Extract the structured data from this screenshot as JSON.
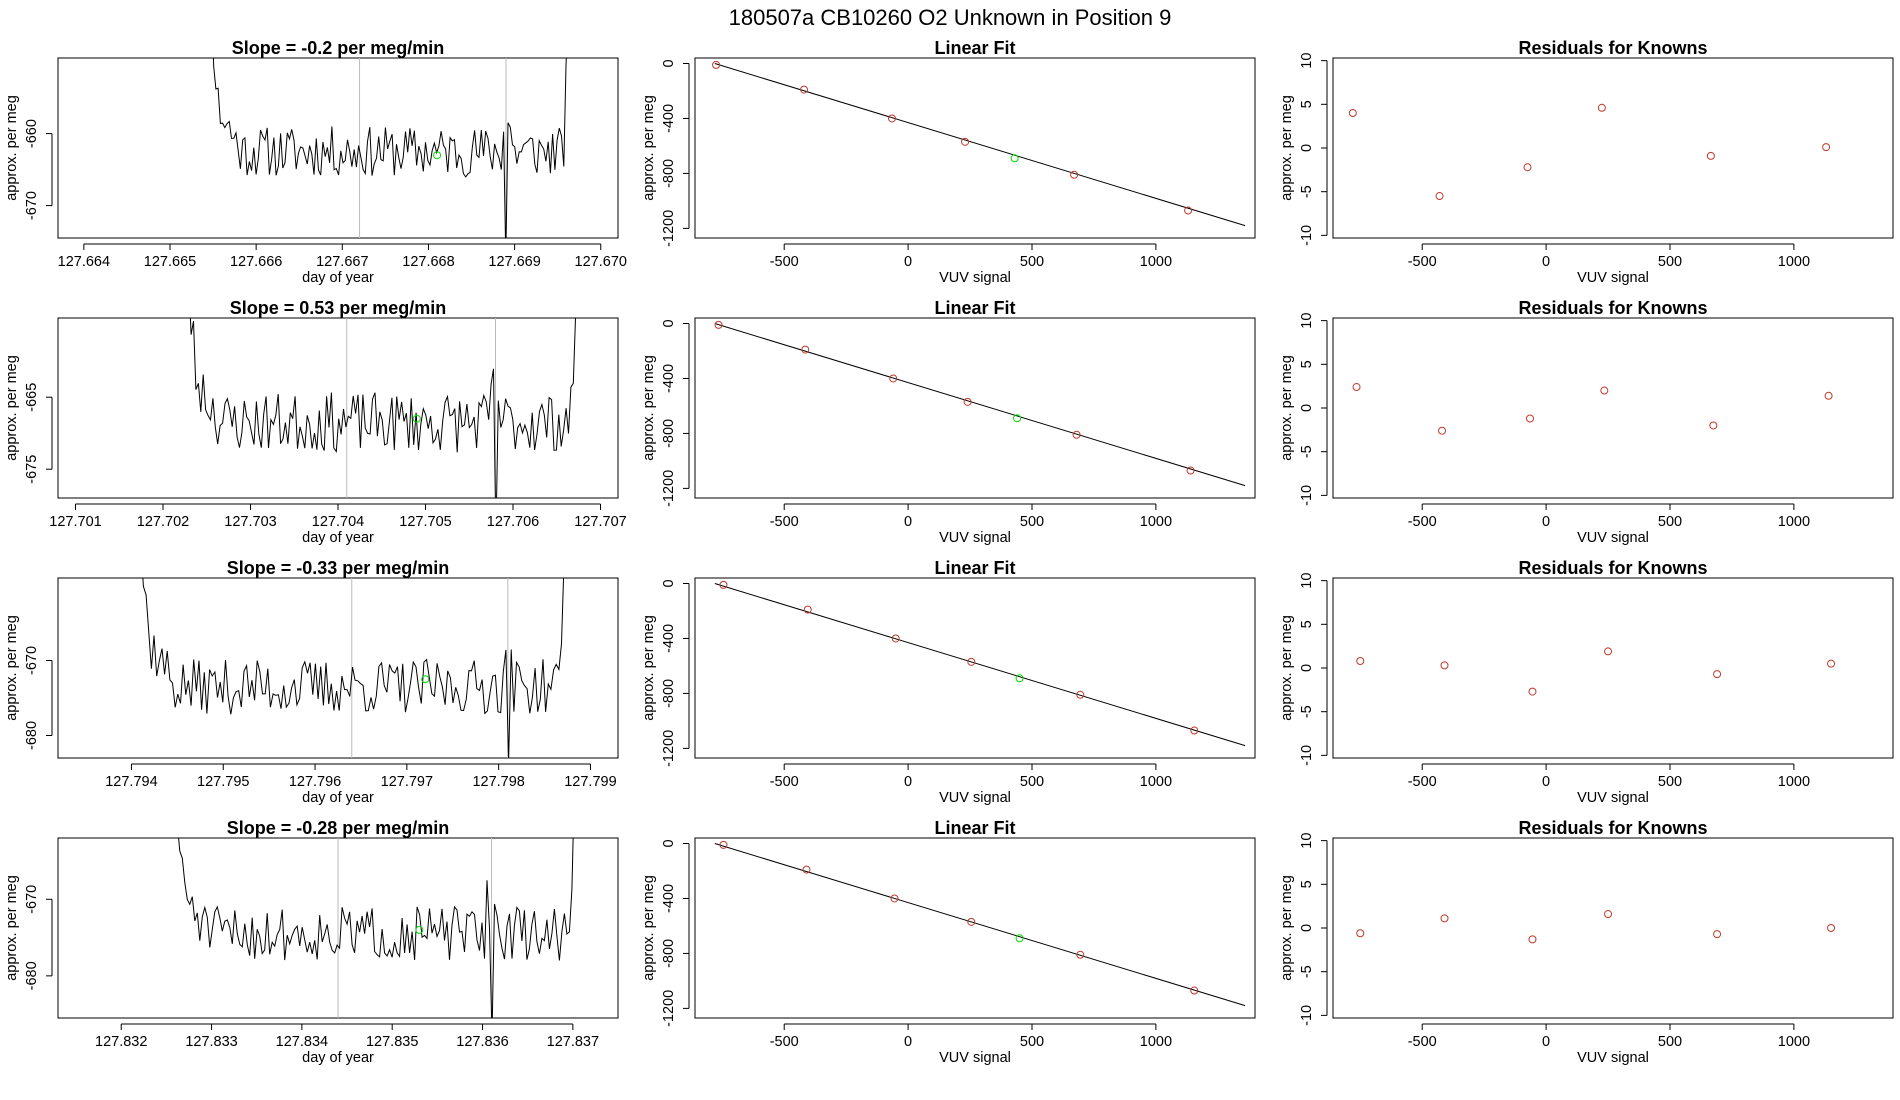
{
  "figure": {
    "title": "180507a      CB10260    O2 Unknown in Position  9",
    "colors": {
      "trace": "#000000",
      "known": "#c0392b",
      "unknown": "#00dd00",
      "vline": "#bbbbbb",
      "frame": "#000000"
    }
  },
  "chart_data": [
    {
      "type": "line",
      "row": 1,
      "col": 1,
      "title": "Slope =  -0.2  per meg/min",
      "xlabel": "day of year",
      "ylabel": "approx. per meg",
      "xlim": [
        127.6637,
        127.6702
      ],
      "ylim": [
        -674.5,
        -649.5
      ],
      "xticks": [
        "127.664",
        "127.665",
        "127.666",
        "127.667",
        "127.668",
        "127.669",
        "127.670"
      ],
      "yticks": [
        "-660",
        "-670"
      ],
      "vlines": [
        127.6672,
        127.6689
      ],
      "trace_start": 127.6653,
      "trace_end": 127.6697,
      "trace_base": -662.5,
      "trace_amp": 2.2,
      "seed": 11,
      "dip_at": 127.6689,
      "dip_depth": 15,
      "unknown_point": {
        "x": 127.6681,
        "y": -663.0
      }
    },
    {
      "type": "line",
      "row": 2,
      "col": 1,
      "title": "Slope =  0.53  per meg/min",
      "xlabel": "day of year",
      "ylabel": "approx. per meg",
      "xlim": [
        127.7008,
        127.7072
      ],
      "ylim": [
        -679,
        -654
      ],
      "xticks": [
        "127.701",
        "127.702",
        "127.703",
        "127.704",
        "127.705",
        "127.706",
        "127.707"
      ],
      "yticks": [
        "-665",
        "-675"
      ],
      "vlines": [
        127.7041,
        127.7058
      ],
      "trace_start": 127.7021,
      "trace_end": 127.7068,
      "trace_base": -668.5,
      "trace_amp": 2.6,
      "seed": 23,
      "dip_at": 127.7058,
      "dip_depth": 16,
      "unknown_point": {
        "x": 127.7049,
        "y": -668.0
      }
    },
    {
      "type": "line",
      "row": 3,
      "col": 1,
      "title": "Slope =  -0.33  per meg/min",
      "xlabel": "day of year",
      "ylabel": "approx. per meg",
      "xlim": [
        127.7932,
        127.7993
      ],
      "ylim": [
        -683,
        -659
      ],
      "xticks": [
        "127.794",
        "127.795",
        "127.796",
        "127.797",
        "127.798",
        "127.799"
      ],
      "yticks": [
        "-670",
        "-680"
      ],
      "vlines": [
        127.7964,
        127.7981
      ],
      "trace_start": 127.7939,
      "trace_end": 127.7988,
      "trace_base": -673.5,
      "trace_amp": 2.3,
      "seed": 37,
      "dip_at": 127.7981,
      "dip_depth": 13,
      "unknown_point": {
        "x": 127.7972,
        "y": -672.5
      }
    },
    {
      "type": "line",
      "row": 4,
      "col": 1,
      "title": "Slope =  -0.28  per meg/min",
      "xlabel": "day of year",
      "ylabel": "approx. per meg",
      "xlim": [
        127.8313,
        127.8375
      ],
      "ylim": [
        -685.5,
        -662
      ],
      "xticks": [
        "127.832",
        "127.833",
        "127.834",
        "127.835",
        "127.836",
        "127.837"
      ],
      "yticks": [
        "-670",
        "-680"
      ],
      "vlines": [
        127.8344,
        127.8361
      ],
      "trace_start": 127.8324,
      "trace_end": 127.8371,
      "trace_base": -674.5,
      "trace_amp": 2.2,
      "seed": 51,
      "dip_at": 127.8361,
      "dip_depth": 13,
      "unknown_point": {
        "x": 127.8353,
        "y": -674.0
      }
    },
    {
      "type": "scatter",
      "row": 1,
      "col": 2,
      "title": "Linear Fit",
      "xlabel": "VUV signal",
      "ylabel": "approx. per meg",
      "xlim": [
        -860,
        1400
      ],
      "ylim": [
        -1270,
        40
      ],
      "xticks": [
        -500,
        0,
        500,
        1000
      ],
      "yticks": [
        0,
        -400,
        -800,
        -1200
      ],
      "fit_line": {
        "x": [
          -780,
          1360
        ],
        "y": [
          0,
          -1180
        ]
      },
      "knowns": {
        "x": [
          -775,
          -420,
          -65,
          230,
          670,
          1130
        ],
        "y": [
          -10,
          -190,
          -400,
          -570,
          -810,
          -1070
        ]
      },
      "unknown": {
        "x": 430,
        "y": -690
      }
    },
    {
      "type": "scatter",
      "row": 2,
      "col": 2,
      "title": "Linear Fit",
      "xlabel": "VUV signal",
      "ylabel": "approx. per meg",
      "xlim": [
        -860,
        1400
      ],
      "ylim": [
        -1270,
        40
      ],
      "xticks": [
        -500,
        0,
        500,
        1000
      ],
      "yticks": [
        0,
        -400,
        -800,
        -1200
      ],
      "fit_line": {
        "x": [
          -780,
          1360
        ],
        "y": [
          0,
          -1180
        ]
      },
      "knowns": {
        "x": [
          -765,
          -415,
          -60,
          240,
          680,
          1140
        ],
        "y": [
          -10,
          -190,
          -400,
          -570,
          -810,
          -1070
        ]
      },
      "unknown": {
        "x": 440,
        "y": -690
      }
    },
    {
      "type": "scatter",
      "row": 3,
      "col": 2,
      "title": "Linear Fit",
      "xlabel": "VUV signal",
      "ylabel": "approx. per meg",
      "xlim": [
        -860,
        1400
      ],
      "ylim": [
        -1270,
        40
      ],
      "xticks": [
        -500,
        0,
        500,
        1000
      ],
      "yticks": [
        0,
        -400,
        -800,
        -1200
      ],
      "fit_line": {
        "x": [
          -780,
          1360
        ],
        "y": [
          0,
          -1180
        ]
      },
      "knowns": {
        "x": [
          -745,
          -405,
          -50,
          255,
          695,
          1155
        ],
        "y": [
          -10,
          -190,
          -400,
          -570,
          -810,
          -1070
        ]
      },
      "unknown": {
        "x": 450,
        "y": -690
      }
    },
    {
      "type": "scatter",
      "row": 4,
      "col": 2,
      "title": "Linear Fit",
      "xlabel": "VUV signal",
      "ylabel": "approx. per meg",
      "xlim": [
        -860,
        1400
      ],
      "ylim": [
        -1270,
        40
      ],
      "xticks": [
        -500,
        0,
        500,
        1000
      ],
      "yticks": [
        0,
        -400,
        -800,
        -1200
      ],
      "fit_line": {
        "x": [
          -780,
          1360
        ],
        "y": [
          0,
          -1180
        ]
      },
      "knowns": {
        "x": [
          -745,
          -410,
          -55,
          255,
          695,
          1155
        ],
        "y": [
          -10,
          -190,
          -400,
          -570,
          -810,
          -1070
        ]
      },
      "unknown": {
        "x": 450,
        "y": -690
      }
    },
    {
      "type": "scatter",
      "row": 1,
      "col": 3,
      "title": "Residuals for Knowns",
      "xlabel": "VUV signal",
      "ylabel": "approx. per meg",
      "xlim": [
        -860,
        1400
      ],
      "ylim": [
        -10.3,
        10.3
      ],
      "xticks": [
        -500,
        0,
        500,
        1000
      ],
      "yticks": [
        10,
        5,
        0,
        -5,
        -10
      ],
      "knowns": {
        "x": [
          -780,
          -430,
          -75,
          225,
          665,
          1130
        ],
        "y": [
          4.0,
          -5.5,
          -2.2,
          4.6,
          -0.9,
          0.1
        ]
      }
    },
    {
      "type": "scatter",
      "row": 2,
      "col": 3,
      "title": "Residuals for Knowns",
      "xlabel": "VUV signal",
      "ylabel": "approx. per meg",
      "xlim": [
        -860,
        1400
      ],
      "ylim": [
        -10.3,
        10.3
      ],
      "xticks": [
        -500,
        0,
        500,
        1000
      ],
      "yticks": [
        10,
        5,
        0,
        -5,
        -10
      ],
      "knowns": {
        "x": [
          -765,
          -420,
          -65,
          235,
          675,
          1140
        ],
        "y": [
          2.4,
          -2.6,
          -1.2,
          2.0,
          -2.0,
          1.4
        ]
      }
    },
    {
      "type": "scatter",
      "row": 3,
      "col": 3,
      "title": "Residuals for Knowns",
      "xlabel": "VUV signal",
      "ylabel": "approx. per meg",
      "xlim": [
        -860,
        1400
      ],
      "ylim": [
        -10.3,
        10.3
      ],
      "xticks": [
        -500,
        0,
        500,
        1000
      ],
      "yticks": [
        10,
        5,
        0,
        -5,
        -10
      ],
      "knowns": {
        "x": [
          -750,
          -410,
          -55,
          250,
          690,
          1150
        ],
        "y": [
          0.8,
          0.3,
          -2.7,
          1.9,
          -0.7,
          0.5
        ]
      }
    },
    {
      "type": "scatter",
      "row": 4,
      "col": 3,
      "title": "Residuals for Knowns",
      "xlabel": "VUV signal",
      "ylabel": "approx. per meg",
      "xlim": [
        -860,
        1400
      ],
      "ylim": [
        -10.3,
        10.3
      ],
      "xticks": [
        -500,
        0,
        500,
        1000
      ],
      "yticks": [
        10,
        5,
        0,
        -5,
        -10
      ],
      "knowns": {
        "x": [
          -750,
          -410,
          -55,
          250,
          690,
          1150
        ],
        "y": [
          -0.6,
          1.1,
          -1.3,
          1.6,
          -0.7,
          0.0
        ]
      }
    }
  ]
}
